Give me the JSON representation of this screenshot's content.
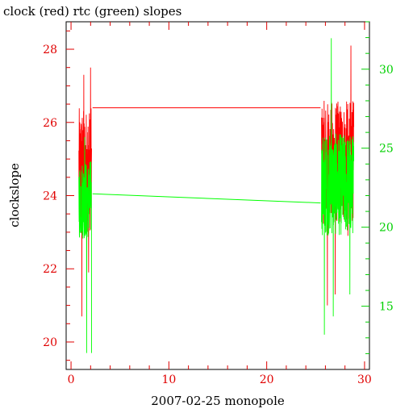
{
  "chart_data": {
    "type": "line",
    "title": "clock (red) rtc (green) slopes",
    "xlabel": "2007-02-25 monopole",
    "ylabel": "clockslope",
    "xlim": [
      -0.5,
      30.5
    ],
    "ylim_left": [
      19.25,
      28.75
    ],
    "ylim_right": [
      11,
      33
    ],
    "x_ticks": [
      0,
      10,
      20,
      30
    ],
    "y_ticks_left": [
      20,
      22,
      24,
      26,
      28
    ],
    "y_ticks_right": [
      15,
      20,
      25,
      30
    ],
    "grid": false,
    "colors": {
      "clock": "#ff0000",
      "rtc": "#00ff00",
      "axis_left": "#e00000",
      "axis_right": "#00d000"
    },
    "series": [
      {
        "name": "clock",
        "axis": "left",
        "segments": [
          {
            "type": "noise",
            "x": [
              0.8,
              2.1
            ],
            "center": 24.7,
            "amplitude": 1.7,
            "spikes": [
              {
                "x": 1.1,
                "y": 20.7
              },
              {
                "x": 1.3,
                "y": 27.3
              },
              {
                "x": 2.0,
                "y": 27.5
              },
              {
                "x": 1.8,
                "y": 21.9
              }
            ]
          },
          {
            "type": "line",
            "x": [
              2.2,
              25.5
            ],
            "y": [
              26.4,
              26.4
            ]
          },
          {
            "type": "noise",
            "x": [
              25.6,
              28.9
            ],
            "center": 24.9,
            "amplitude": 1.7,
            "spikes": [
              {
                "x": 26.2,
                "y": 21.0
              },
              {
                "x": 27.0,
                "y": 21.3
              },
              {
                "x": 28.6,
                "y": 28.1
              },
              {
                "x": 28.3,
                "y": 22.9
              }
            ]
          }
        ]
      },
      {
        "name": "rtc",
        "axis": "left",
        "segments": [
          {
            "type": "noise",
            "x": [
              0.8,
              2.1
            ],
            "center": 23.9,
            "amplitude": 1.1,
            "spikes": [
              {
                "x": 1.6,
                "y": 19.7
              },
              {
                "x": 2.1,
                "y": 19.7
              },
              {
                "x": 1.4,
                "y": 25.6
              }
            ]
          },
          {
            "type": "line",
            "x": [
              2.2,
              25.5
            ],
            "y": [
              24.05,
              23.8
            ]
          },
          {
            "type": "noise",
            "x": [
              25.6,
              28.9
            ],
            "center": 24.3,
            "amplitude": 1.4,
            "spikes": [
              {
                "x": 26.6,
                "y": 28.3
              },
              {
                "x": 25.9,
                "y": 20.2
              },
              {
                "x": 26.8,
                "y": 20.7
              },
              {
                "x": 28.5,
                "y": 21.3
              }
            ]
          }
        ]
      }
    ]
  }
}
